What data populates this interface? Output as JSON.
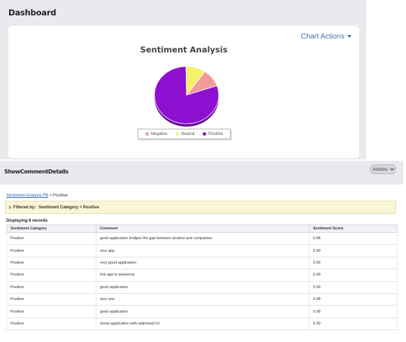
{
  "dashboard": {
    "title": "Dashboard",
    "chart_actions_label": "Chart Actions",
    "chart_title": "Sentiment Analysis"
  },
  "chart_data": {
    "type": "pie",
    "title": "Sentiment Analysis",
    "categories": [
      "Negative",
      "Neutral",
      "Positive"
    ],
    "values": [
      1,
      1,
      8
    ],
    "colors": [
      "#f19b9b",
      "#f5f16a",
      "#8e0fd0"
    ],
    "legend_position": "bottom"
  },
  "details": {
    "title": "ShowCommentDetails",
    "actions_label": "Actions",
    "breadcrumb_link": "Sentiment Analysis FB",
    "breadcrumb_current": "> Positive",
    "filter_prefix": "Filtered by:",
    "filter_text": "Sentiment Category = Positive",
    "record_count": "Displaying 8 records",
    "columns": [
      "Sentiment Category",
      "Comment",
      "Sentiment Score"
    ],
    "rows": [
      [
        "Positive",
        "good application bridges the gap between student and companies",
        "0.98"
      ],
      [
        "Positive",
        "nice app",
        "0.99"
      ],
      [
        "Positive",
        "very good application",
        "0.99"
      ],
      [
        "Positive",
        "this app is awesome",
        "0.99"
      ],
      [
        "Positive",
        "good application",
        "0.99"
      ],
      [
        "Positive",
        "nice one",
        "0.98"
      ],
      [
        "Positive",
        "good application",
        "0.99"
      ],
      [
        "Positive",
        "Great application with optimised UI",
        "0.99"
      ]
    ]
  }
}
